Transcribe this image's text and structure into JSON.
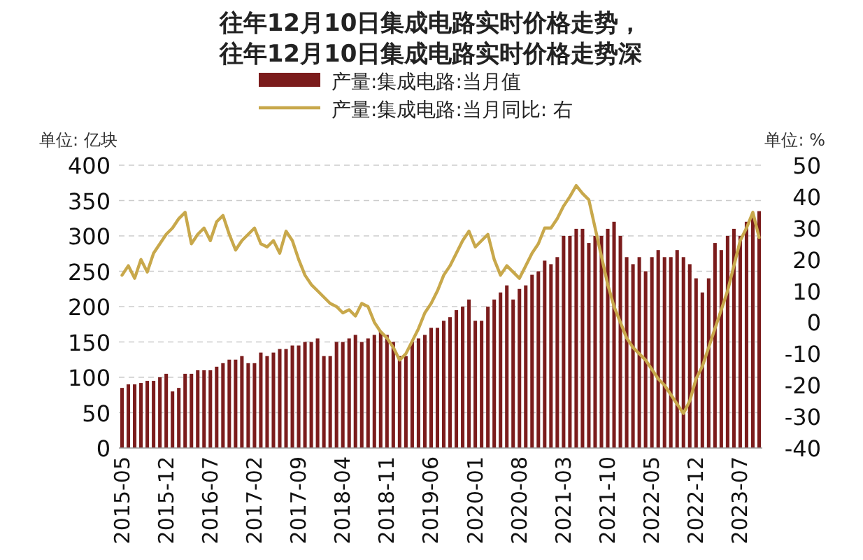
{
  "chart_data": {
    "type": "bar",
    "title": "往年12月10日集成电路实时价格走势，往年12月10日集成电路实时价格走势深",
    "ylabel": "单位: 亿块",
    "y2label": "单位: %",
    "categories": [
      "2015-05",
      null,
      null,
      null,
      null,
      null,
      null,
      "2015-12",
      null,
      null,
      null,
      null,
      null,
      null,
      "2016-07",
      null,
      null,
      null,
      null,
      null,
      null,
      "2017-02",
      null,
      null,
      null,
      null,
      null,
      null,
      "2017-09",
      null,
      null,
      null,
      null,
      null,
      null,
      "2018-04",
      null,
      null,
      null,
      null,
      null,
      null,
      "2018-11",
      null,
      null,
      null,
      null,
      null,
      null,
      "2019-06",
      null,
      null,
      null,
      null,
      null,
      null,
      "2020-01",
      null,
      null,
      null,
      null,
      null,
      null,
      "2020-08",
      null,
      null,
      null,
      null,
      null,
      null,
      "2021-03",
      null,
      null,
      null,
      null,
      null,
      null,
      "2021-10",
      null,
      null,
      null,
      null,
      null,
      null,
      "2022-05",
      null,
      null,
      null,
      null,
      null,
      null,
      "2022-12",
      null,
      null,
      null,
      null,
      null,
      null,
      "2023-07",
      null,
      null,
      null
    ],
    "series": [
      {
        "name": "产量:集成电路:当月值",
        "color": "#7b1c1c",
        "values": [
          85,
          90,
          90,
          92,
          95,
          95,
          100,
          105,
          80,
          85,
          105,
          105,
          110,
          110,
          110,
          115,
          120,
          125,
          125,
          130,
          120,
          120,
          135,
          130,
          135,
          140,
          140,
          145,
          145,
          150,
          150,
          155,
          130,
          130,
          150,
          150,
          155,
          160,
          150,
          155,
          160,
          165,
          160,
          150,
          130,
          130,
          150,
          155,
          160,
          170,
          170,
          180,
          185,
          195,
          200,
          210,
          180,
          180,
          200,
          210,
          220,
          230,
          210,
          225,
          230,
          245,
          250,
          265,
          260,
          270,
          300,
          300,
          310,
          310,
          290,
          300,
          300,
          310,
          320,
          300,
          270,
          260,
          270,
          250,
          270,
          280,
          270,
          270,
          280,
          270,
          260,
          240,
          220,
          240,
          290,
          280,
          300,
          310,
          300,
          320,
          330,
          335
        ]
      },
      {
        "name": "产量:集成电路:当月同比: 右",
        "type": "line",
        "axis": "y2",
        "color": "#c8a84b",
        "values": [
          15,
          18,
          14,
          20,
          16,
          22,
          25,
          28,
          30,
          33,
          35,
          25,
          28,
          30,
          26,
          32,
          34,
          28,
          23,
          26,
          28,
          30,
          25,
          24,
          26,
          22,
          29,
          26,
          20,
          15,
          12,
          10,
          8,
          6,
          5,
          3,
          4,
          2,
          6,
          5,
          0,
          -3,
          -5,
          -8,
          -12,
          -10,
          -6,
          -2,
          3,
          6,
          10,
          15,
          18,
          22,
          26,
          29,
          24,
          26,
          28,
          20,
          15,
          18,
          16,
          14,
          18,
          22,
          25,
          30,
          30,
          33,
          37,
          40,
          43.5,
          41,
          39,
          30,
          21,
          12,
          5,
          0,
          -5,
          -8,
          -10,
          -12,
          -15,
          -18,
          -20,
          -23,
          -26,
          -29,
          -25,
          -18,
          -14,
          -8,
          -2,
          4,
          10,
          18,
          26,
          30,
          35,
          27
        ]
      }
    ],
    "ylim": [
      0,
      400
    ],
    "yticks": [
      0,
      50,
      100,
      150,
      200,
      250,
      300,
      350,
      400
    ],
    "y2lim": [
      -40,
      50
    ],
    "y2ticks": [
      -40,
      -30,
      -20,
      -10,
      0,
      10,
      20,
      30,
      40,
      50
    ],
    "grid": "y",
    "legend": "top",
    "line_style": "solid"
  }
}
